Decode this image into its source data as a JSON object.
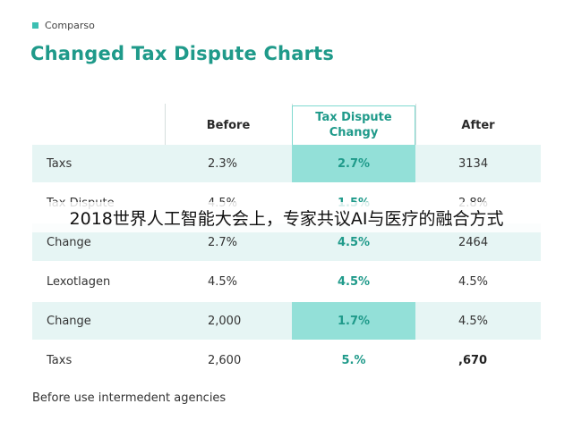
{
  "header": {
    "tag": "Comparso",
    "title": "Changed Tax Dispute Charts"
  },
  "table": {
    "columns": [
      "",
      "Before",
      "Tax Dispute\nChangy",
      "After"
    ],
    "column_head_tax_line1": "Tax Dispute",
    "column_head_tax_line2": "Changy",
    "rows": [
      {
        "label": "Taxs",
        "before": "2.3%",
        "tax": "2.7%",
        "after": "3134"
      },
      {
        "label": "Tax Dispute",
        "before": "4.5%",
        "tax": "1.5%",
        "after": "2.8%"
      },
      {
        "label": "Change",
        "before": "2.7%",
        "tax": "4.5%",
        "after": "2464"
      },
      {
        "label": "Lexotlagen",
        "before": "4.5%",
        "tax": "4.5%",
        "after": "4.5%"
      },
      {
        "label": "Change",
        "before": "2,000",
        "tax": "1.7%",
        "after": "4.5%"
      },
      {
        "label": "Taxs",
        "before": "2,600",
        "tax": "5.%",
        "after": ",670"
      }
    ]
  },
  "footer": {
    "note": "Before use intermedent agencies"
  },
  "overlay": {
    "caption": "2018世界人工智能大会上，专家共议AI与医疗的融合方式"
  },
  "colors": {
    "accent": "#1f9a8a",
    "row_shade": "#e6f5f4",
    "highlight": "#93e0d8"
  }
}
